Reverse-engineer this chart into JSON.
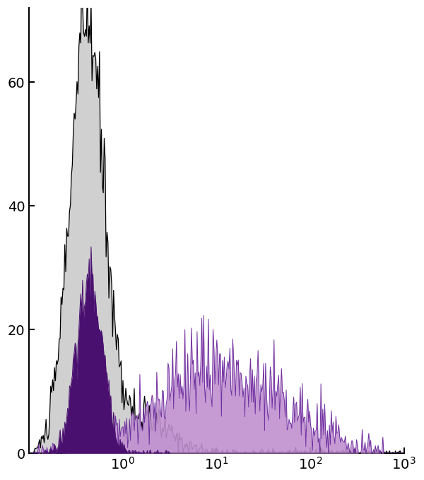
{
  "xlim_log": [
    -1.0,
    3.0
  ],
  "ylim": [
    0,
    72
  ],
  "yticks": [
    0,
    20,
    40,
    60
  ],
  "background_color": "#ffffff",
  "gray_fill_color": "#d0d0d0",
  "gray_line_color": "#000000",
  "dark_purple_fill": "#4a1070",
  "light_purple_fill": "#c090d0",
  "light_purple_line": "#7030a0",
  "seed_ctrl": 10,
  "seed_dark": 20,
  "seed_light": 30,
  "n_bins": 400
}
